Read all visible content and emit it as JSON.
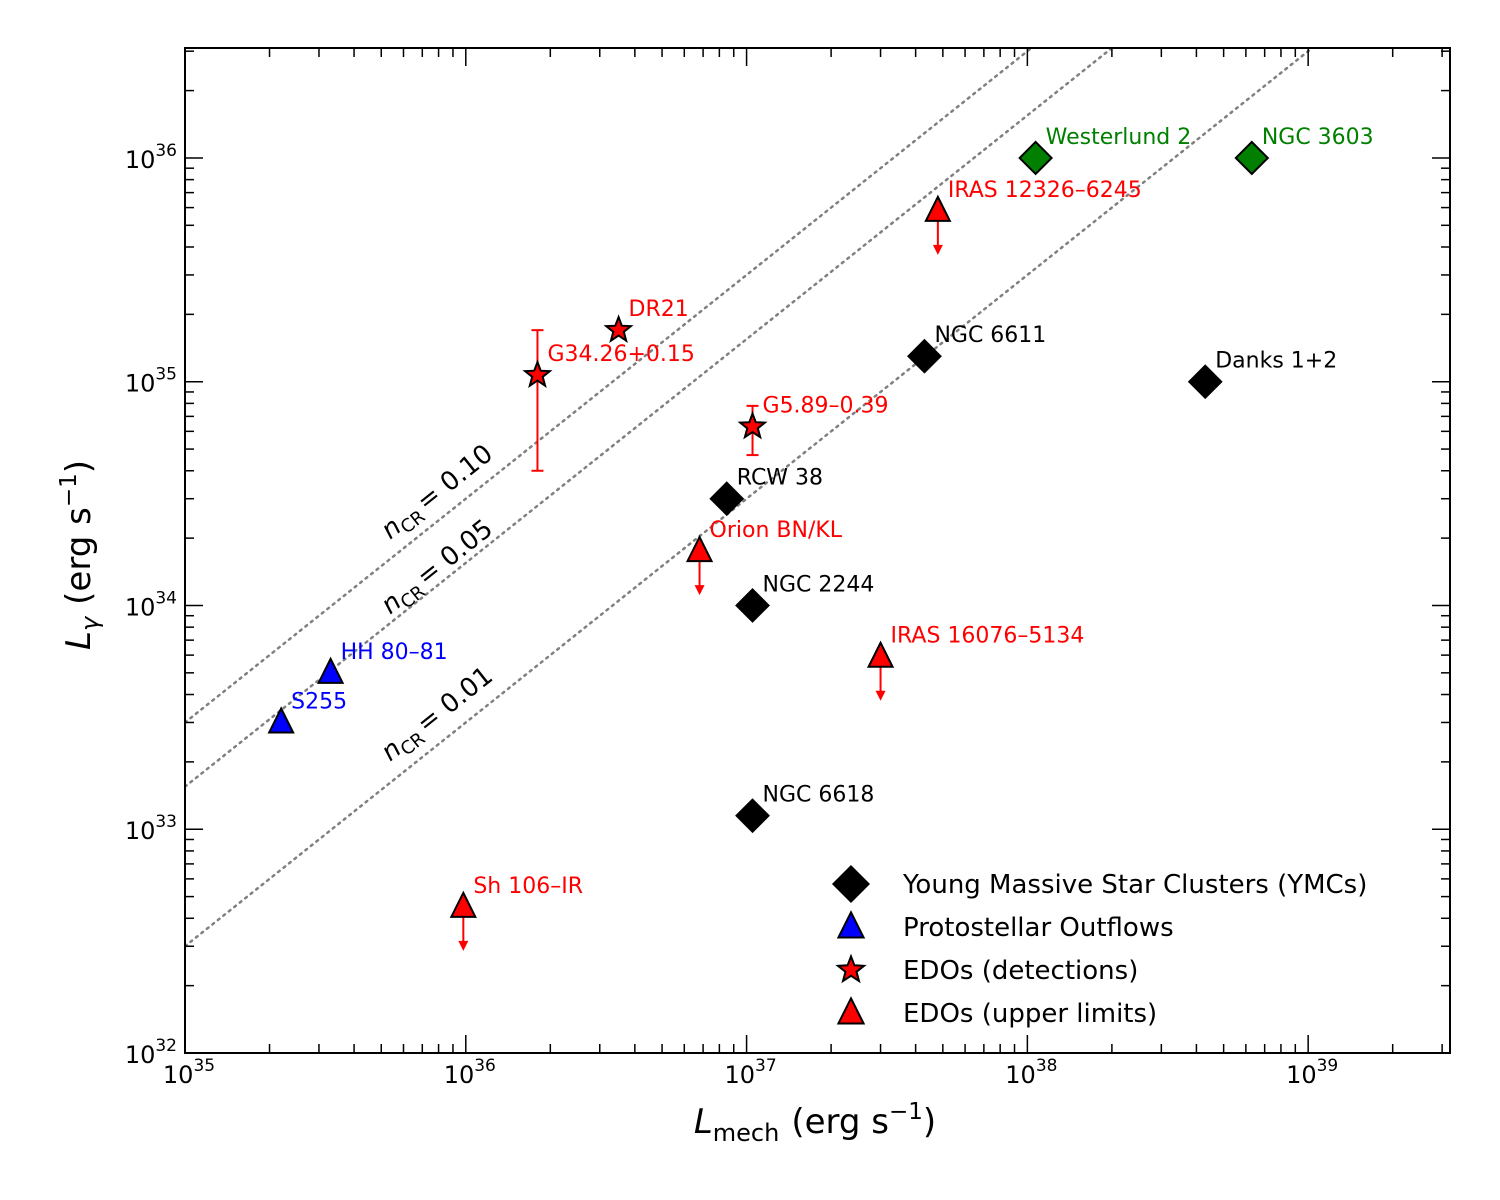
{
  "chart_data": {
    "type": "scatter",
    "title": "",
    "xlabel": {
      "main": "L",
      "sub": "mech",
      "unit": "(erg s",
      "unit_exp": "−1",
      "close": ")"
    },
    "ylabel": {
      "main": "L",
      "sub": "γ",
      "unit": "(erg s",
      "unit_exp": "−1",
      "close": ")"
    },
    "xscale": "log",
    "yscale": "log",
    "xlim": [
      1e+35,
      3.2e+39
    ],
    "ylim": [
      1e+32,
      3.1e+36
    ],
    "xticks": [
      {
        "base": "10",
        "exp": "35",
        "value": 1e+35
      },
      {
        "base": "10",
        "exp": "36",
        "value": 1e+36
      },
      {
        "base": "10",
        "exp": "37",
        "value": 1e+37
      },
      {
        "base": "10",
        "exp": "38",
        "value": 1e+38
      },
      {
        "base": "10",
        "exp": "39",
        "value": 1e+39
      }
    ],
    "yticks": [
      {
        "base": "10",
        "exp": "32",
        "value": 1e+32
      },
      {
        "base": "10",
        "exp": "33",
        "value": 1e+33
      },
      {
        "base": "10",
        "exp": "34",
        "value": 1e+34
      },
      {
        "base": "10",
        "exp": "35",
        "value": 1e+35
      },
      {
        "base": "10",
        "exp": "36",
        "value": 1e+36
      }
    ],
    "grid": false,
    "legend_position": "bottom-right",
    "colors": {
      "ymc": "#000000",
      "ymc_green": "#007f00",
      "outflow": "#0000ff",
      "edo": "#ff0000",
      "edo_label": "#ff0000",
      "outflow_label": "#0000ff",
      "line": "#808080"
    },
    "lines": [
      {
        "label_main": "n",
        "label_sub": "CR",
        "label_value": "= 0.10",
        "ratio": 0.03
      },
      {
        "label_main": "n",
        "label_sub": "CR",
        "label_value": "= 0.05",
        "ratio": 0.0155
      },
      {
        "label_main": "n",
        "label_sub": "CR",
        "label_value": "= 0.01",
        "ratio": 0.003
      }
    ],
    "series": [
      {
        "name": "Young Massive Star Clusters (YMCs)",
        "marker": "diamond",
        "points": [
          {
            "label": "RCW 38",
            "x": 8.5e+36,
            "y": 3e+34,
            "color": "#000000"
          },
          {
            "label": "NGC 2244",
            "x": 1.05e+37,
            "y": 1e+34,
            "color": "#000000"
          },
          {
            "label": "NGC 6611",
            "x": 4.3e+37,
            "y": 1.3e+35,
            "color": "#000000"
          },
          {
            "label": "Danks 1+2",
            "x": 4.3e+38,
            "y": 1e+35,
            "color": "#000000"
          },
          {
            "label": "NGC 6618",
            "x": 1.05e+37,
            "y": 1.15e+33,
            "color": "#000000"
          },
          {
            "label": "Westerlund 2",
            "x": 1.07e+38,
            "y": 1e+36,
            "color": "#007f00"
          },
          {
            "label": "NGC 3603",
            "x": 6.3e+38,
            "y": 1e+36,
            "color": "#007f00"
          }
        ]
      },
      {
        "name": "Protostellar Outflows",
        "marker": "triangle",
        "points": [
          {
            "label": "HH 80–81",
            "x": 3.3e+35,
            "y": 5e+33,
            "color": "#0000ff"
          },
          {
            "label": "S255",
            "x": 2.2e+35,
            "y": 3e+33,
            "color": "#0000ff"
          }
        ]
      },
      {
        "name": "EDOs (detections)",
        "marker": "star",
        "points": [
          {
            "label": "DR21",
            "x": 3.5e+36,
            "y": 1.7e+35,
            "color": "#ff0000"
          },
          {
            "label": "G34.26+0.15",
            "x": 1.8e+36,
            "y": 1.07e+35,
            "yerr_low": 4e+34,
            "yerr_high": 1.7e+35,
            "color": "#ff0000"
          },
          {
            "label": "G5.89–0.39",
            "x": 1.05e+37,
            "y": 6.3e+34,
            "yerr_low": 4.7e+34,
            "yerr_high": 7.8e+34,
            "color": "#ff0000"
          }
        ]
      },
      {
        "name": "EDOs (upper limits)",
        "marker": "triangle",
        "upper_limit": true,
        "points": [
          {
            "label": "IRAS 12326–6245",
            "x": 4.8e+37,
            "y": 5.8e+35,
            "color": "#ff0000"
          },
          {
            "label": "Orion BN/KL",
            "x": 6.8e+36,
            "y": 1.75e+34,
            "color": "#ff0000"
          },
          {
            "label": "IRAS 16076–5134",
            "x": 3e+37,
            "y": 5.9e+33,
            "color": "#ff0000"
          },
          {
            "label": "Sh 106–IR",
            "x": 9.8e+35,
            "y": 4.5e+32,
            "color": "#ff0000"
          }
        ]
      }
    ],
    "legend": [
      {
        "label": "Young Massive Star Clusters (YMCs)",
        "marker": "diamond",
        "color": "#000000"
      },
      {
        "label": "Protostellar Outflows",
        "marker": "triangle",
        "color": "#0000ff"
      },
      {
        "label": "EDOs (detections)",
        "marker": "star",
        "color": "#ff0000"
      },
      {
        "label": "EDOs (upper limits)",
        "marker": "triangle",
        "color": "#ff0000"
      }
    ]
  }
}
